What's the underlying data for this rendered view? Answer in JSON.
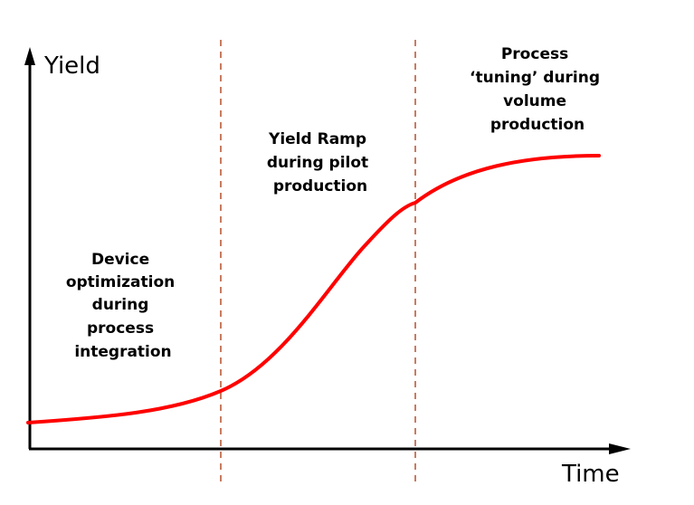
{
  "axes": {
    "y_label": "Yield",
    "x_label": "Time"
  },
  "phases": [
    {
      "lines": [
        "Device",
        "optimization",
        "during",
        "process",
        "integration"
      ]
    },
    {
      "lines": [
        "Yield Ramp",
        "during pilot",
        "production"
      ]
    },
    {
      "lines": [
        "Process",
        "‘tuning’ during",
        "volume",
        "production"
      ]
    }
  ],
  "colors": {
    "curve": "#ff0000",
    "axes": "#000000",
    "dividers": "#b5512b",
    "background": "#ffffff"
  }
}
